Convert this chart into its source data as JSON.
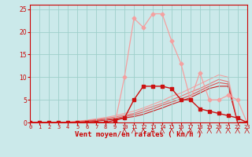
{
  "xlabel": "Vent moyen/en rafales ( km/h )",
  "xlim": [
    0,
    23
  ],
  "ylim": [
    0,
    26
  ],
  "yticks": [
    0,
    5,
    10,
    15,
    20,
    25
  ],
  "xticks": [
    0,
    1,
    2,
    3,
    4,
    5,
    6,
    7,
    8,
    9,
    10,
    11,
    12,
    13,
    14,
    15,
    16,
    17,
    18,
    19,
    20,
    21,
    22,
    23
  ],
  "background_color": "#cbe9ea",
  "grid_color": "#9ecfca",
  "series": [
    {
      "x": [
        0,
        1,
        2,
        3,
        4,
        5,
        6,
        7,
        8,
        9,
        10,
        11,
        12,
        13,
        14,
        15,
        16,
        17,
        18,
        19,
        20,
        21,
        22,
        23
      ],
      "y": [
        0,
        0,
        0,
        0,
        0,
        0,
        0,
        0,
        0,
        0,
        10,
        23,
        21,
        24,
        24,
        18,
        13,
        5,
        11,
        5,
        5,
        6,
        5,
        0
      ],
      "color": "#f4a0a0",
      "linewidth": 0.9,
      "marker": "D",
      "markersize": 2.5,
      "zorder": 2
    },
    {
      "x": [
        0,
        1,
        2,
        3,
        4,
        5,
        6,
        7,
        8,
        9,
        10,
        11,
        12,
        13,
        14,
        15,
        16,
        17,
        18,
        19,
        20,
        21,
        22,
        23
      ],
      "y": [
        0,
        0,
        0,
        0,
        0,
        0,
        0,
        0,
        0,
        0.5,
        1,
        5,
        8,
        8,
        8,
        7.5,
        5,
        5,
        3,
        2.5,
        2,
        1.5,
        1,
        0
      ],
      "color": "#cc1111",
      "linewidth": 1.0,
      "marker": "s",
      "markersize": 2.5,
      "zorder": 4
    },
    {
      "x": [
        0,
        1,
        2,
        3,
        4,
        5,
        6,
        7,
        8,
        9,
        10,
        11,
        12,
        13,
        14,
        15,
        16,
        17,
        18,
        19,
        20,
        21,
        22,
        23
      ],
      "y": [
        0,
        0,
        0,
        0,
        0.1,
        0.3,
        0.5,
        0.8,
        1.1,
        1.5,
        2.0,
        2.5,
        3.2,
        4.0,
        4.8,
        5.8,
        6.5,
        7.5,
        8.5,
        9.5,
        10.5,
        10.0,
        0,
        0
      ],
      "color": "#f4a0a0",
      "linewidth": 0.8,
      "marker": null,
      "markersize": 0,
      "zorder": 1
    },
    {
      "x": [
        0,
        1,
        2,
        3,
        4,
        5,
        6,
        7,
        8,
        9,
        10,
        11,
        12,
        13,
        14,
        15,
        16,
        17,
        18,
        19,
        20,
        21,
        22,
        23
      ],
      "y": [
        0,
        0,
        0,
        0,
        0.05,
        0.2,
        0.4,
        0.6,
        0.9,
        1.2,
        1.6,
        2.0,
        2.8,
        3.5,
        4.2,
        5.0,
        5.8,
        6.7,
        7.5,
        8.5,
        9.5,
        9.0,
        0,
        0
      ],
      "color": "#e87878",
      "linewidth": 0.8,
      "marker": null,
      "markersize": 0,
      "zorder": 1
    },
    {
      "x": [
        0,
        1,
        2,
        3,
        4,
        5,
        6,
        7,
        8,
        9,
        10,
        11,
        12,
        13,
        14,
        15,
        16,
        17,
        18,
        19,
        20,
        21,
        22,
        23
      ],
      "y": [
        0,
        0,
        0,
        0,
        0.03,
        0.1,
        0.3,
        0.5,
        0.7,
        0.9,
        1.3,
        1.7,
        2.3,
        3.0,
        3.8,
        4.5,
        5.2,
        6.0,
        7.0,
        8.0,
        8.8,
        8.5,
        0,
        0
      ],
      "color": "#dd5555",
      "linewidth": 0.8,
      "marker": null,
      "markersize": 0,
      "zorder": 1
    },
    {
      "x": [
        0,
        1,
        2,
        3,
        4,
        5,
        6,
        7,
        8,
        9,
        10,
        11,
        12,
        13,
        14,
        15,
        16,
        17,
        18,
        19,
        20,
        21,
        22,
        23
      ],
      "y": [
        0,
        0,
        0,
        0,
        0.02,
        0.05,
        0.15,
        0.3,
        0.5,
        0.7,
        1.0,
        1.3,
        1.8,
        2.5,
        3.2,
        4.0,
        4.7,
        5.5,
        6.5,
        7.5,
        8.0,
        8.0,
        0,
        0
      ],
      "color": "#cc2222",
      "linewidth": 0.8,
      "marker": null,
      "markersize": 0,
      "zorder": 1
    }
  ],
  "wind_arrows_x": [
    10,
    11,
    12,
    13,
    14,
    15,
    16,
    17,
    18,
    19,
    20,
    21,
    22,
    23
  ],
  "xlabel_color": "#cc0000",
  "tick_color": "#cc0000",
  "axline_color": "#cc0000"
}
